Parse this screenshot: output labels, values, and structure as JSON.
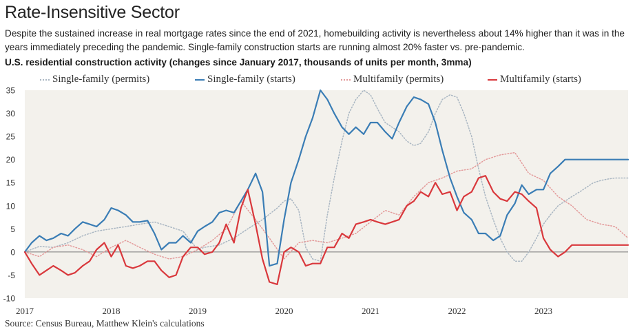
{
  "header": {
    "title": "Rate-Insensitive Sector",
    "subtitle": "Despite the sustained increase in real mortgage rates since the end of 2021, homebuilding activity is nevertheless about 14% higher than it was in the years immediately preceding the pandemic. Single-family construction starts are running almost 20% faster vs. pre-pandemic.",
    "chart_title": "U.S. residential construction activity (changes since January 2017, thousands of units per month, 3mma)"
  },
  "source": "Source: Census Bureau, Matthew Klein's calculations",
  "chart_data": {
    "type": "line",
    "ylim": [
      -10,
      35
    ],
    "yticks": [
      -10,
      -5,
      0,
      5,
      10,
      15,
      20,
      25,
      30,
      35
    ],
    "xlim": [
      2017.0,
      2023.98
    ],
    "xticks": [
      "2017",
      "2018",
      "2019",
      "2020",
      "2021",
      "2022",
      "2023"
    ],
    "grid": false,
    "legend_position": "top",
    "colors": {
      "sf_permits": "#a9b6c2",
      "sf_starts": "#3a7db5",
      "mf_permits": "#e39a9a",
      "mf_starts": "#d9383c",
      "zero_line": "#777777",
      "plot_background": "#f3f1ec"
    },
    "series": [
      {
        "name": "Single-family (permits)",
        "key": "sf_permits",
        "style": "dotted",
        "x": [
          2017.0,
          2017.17,
          2017.33,
          2017.5,
          2017.67,
          2017.83,
          2018.0,
          2018.17,
          2018.33,
          2018.5,
          2018.67,
          2018.83,
          2019.0,
          2019.08,
          2019.25,
          2019.42,
          2019.58,
          2019.75,
          2019.92,
          2020.0,
          2020.08,
          2020.17,
          2020.25,
          2020.33,
          2020.42,
          2020.5,
          2020.58,
          2020.67,
          2020.75,
          2020.83,
          2020.92,
          2021.0,
          2021.08,
          2021.17,
          2021.25,
          2021.33,
          2021.42,
          2021.5,
          2021.58,
          2021.67,
          2021.75,
          2021.83,
          2021.92,
          2022.0,
          2022.08,
          2022.17,
          2022.25,
          2022.33,
          2022.42,
          2022.5,
          2022.58,
          2022.67,
          2022.75,
          2022.83,
          2022.92,
          2023.0,
          2023.08,
          2023.17,
          2023.25,
          2023.33,
          2023.42,
          2023.5,
          2023.58,
          2023.67,
          2023.75,
          2023.83,
          2023.92,
          2023.98
        ],
        "values": [
          0,
          1.2,
          1.0,
          2.0,
          3.5,
          4.5,
          5.0,
          5.5,
          6.0,
          6.5,
          5.5,
          4.5,
          0.5,
          1.0,
          1.5,
          3.0,
          5.0,
          7.0,
          9.5,
          11.0,
          11.5,
          9.0,
          1.0,
          -1.5,
          -2.0,
          8.0,
          16.0,
          24.0,
          30.0,
          33.0,
          35.0,
          34.0,
          31.0,
          28.0,
          27.0,
          26.0,
          24.0,
          23.0,
          23.5,
          26.0,
          30.0,
          33.0,
          34.0,
          33.5,
          30.0,
          25.0,
          18.0,
          12.0,
          7.0,
          3.0,
          0.0,
          -2.0,
          -2.0,
          0.0,
          3.0,
          6.0,
          8.0,
          10.0,
          11.0,
          12.0,
          13.0,
          14.0,
          15.0,
          15.5,
          15.8,
          16.0,
          16.0,
          16.0
        ]
      },
      {
        "name": "Single-family (starts)",
        "key": "sf_starts",
        "style": "solid",
        "x": [
          2017.0,
          2017.08,
          2017.17,
          2017.25,
          2017.33,
          2017.42,
          2017.5,
          2017.58,
          2017.67,
          2017.75,
          2017.83,
          2017.92,
          2018.0,
          2018.08,
          2018.17,
          2018.25,
          2018.33,
          2018.42,
          2018.5,
          2018.58,
          2018.67,
          2018.75,
          2018.83,
          2018.92,
          2019.0,
          2019.08,
          2019.17,
          2019.25,
          2019.33,
          2019.42,
          2019.5,
          2019.58,
          2019.67,
          2019.75,
          2019.83,
          2019.92,
          2020.0,
          2020.08,
          2020.17,
          2020.25,
          2020.33,
          2020.42,
          2020.5,
          2020.58,
          2020.67,
          2020.75,
          2020.83,
          2020.92,
          2021.0,
          2021.08,
          2021.17,
          2021.25,
          2021.33,
          2021.42,
          2021.5,
          2021.58,
          2021.67,
          2021.75,
          2021.83,
          2021.92,
          2022.0,
          2022.08,
          2022.17,
          2022.25,
          2022.33,
          2022.42,
          2022.5,
          2022.58,
          2022.67,
          2022.75,
          2022.83,
          2022.92,
          2023.0,
          2023.08,
          2023.17,
          2023.25,
          2023.33,
          2023.42,
          2023.5,
          2023.58,
          2023.67,
          2023.75,
          2023.83,
          2023.92,
          2023.98
        ],
        "values": [
          0,
          2.0,
          3.5,
          2.5,
          3.0,
          4.0,
          3.5,
          5.0,
          6.5,
          6.0,
          5.5,
          7.0,
          9.5,
          9.0,
          8.0,
          6.5,
          6.5,
          6.8,
          4.0,
          0.5,
          2.0,
          2.0,
          3.5,
          2.0,
          4.5,
          5.5,
          6.5,
          8.5,
          9.0,
          8.5,
          11.0,
          13.5,
          17.0,
          13.0,
          -3.0,
          -2.5,
          7.0,
          15.0,
          20.0,
          25.0,
          29.0,
          35.0,
          33.0,
          30.0,
          27.0,
          25.5,
          27.0,
          25.5,
          28.0,
          28.0,
          26.0,
          24.5,
          28.0,
          31.5,
          33.5,
          33.0,
          32.0,
          28.0,
          22.0,
          16.0,
          12.0,
          8.5,
          7.0,
          4.0,
          4.0,
          2.5,
          3.5,
          8.0,
          10.5,
          14.5,
          12.5,
          13.5,
          13.5,
          17.0,
          18.5,
          20.0,
          20.0,
          20.0,
          20.0,
          20.0,
          20.0,
          20.0,
          20.0,
          20.0,
          20.0
        ]
      },
      {
        "name": "Multifamily (permits)",
        "key": "mf_permits",
        "style": "dotted",
        "x": [
          2017.0,
          2017.17,
          2017.33,
          2017.5,
          2017.67,
          2017.83,
          2018.0,
          2018.17,
          2018.33,
          2018.5,
          2018.67,
          2018.83,
          2019.0,
          2019.17,
          2019.33,
          2019.5,
          2019.67,
          2019.83,
          2020.0,
          2020.17,
          2020.33,
          2020.5,
          2020.67,
          2020.83,
          2021.0,
          2021.17,
          2021.33,
          2021.5,
          2021.67,
          2021.83,
          2022.0,
          2022.17,
          2022.33,
          2022.5,
          2022.67,
          2022.83,
          2023.0,
          2023.17,
          2023.33,
          2023.5,
          2023.67,
          2023.83,
          2023.98
        ],
        "values": [
          0,
          -1.0,
          1.0,
          1.5,
          0.5,
          -1.0,
          1.0,
          2.5,
          1.0,
          -0.5,
          -1.5,
          -1.0,
          0.5,
          2.5,
          5.0,
          11.0,
          7.0,
          3.0,
          -1.5,
          2.0,
          2.5,
          2.0,
          3.0,
          4.0,
          6.5,
          9.0,
          8.0,
          12.0,
          15.0,
          16.0,
          17.5,
          18.0,
          20.0,
          21.0,
          21.5,
          17.0,
          15.5,
          12.0,
          10.0,
          7.0,
          6.0,
          5.5,
          3.0
        ]
      },
      {
        "name": "Multifamily (starts)",
        "key": "mf_starts",
        "style": "solid",
        "x": [
          2017.0,
          2017.08,
          2017.17,
          2017.25,
          2017.33,
          2017.42,
          2017.5,
          2017.58,
          2017.67,
          2017.75,
          2017.83,
          2017.92,
          2018.0,
          2018.08,
          2018.17,
          2018.25,
          2018.33,
          2018.42,
          2018.5,
          2018.58,
          2018.67,
          2018.75,
          2018.83,
          2018.92,
          2019.0,
          2019.08,
          2019.17,
          2019.25,
          2019.33,
          2019.42,
          2019.5,
          2019.58,
          2019.67,
          2019.75,
          2019.83,
          2019.92,
          2020.0,
          2020.08,
          2020.17,
          2020.25,
          2020.33,
          2020.42,
          2020.5,
          2020.58,
          2020.67,
          2020.75,
          2020.83,
          2020.92,
          2021.0,
          2021.08,
          2021.17,
          2021.25,
          2021.33,
          2021.42,
          2021.5,
          2021.58,
          2021.67,
          2021.75,
          2021.83,
          2021.92,
          2022.0,
          2022.08,
          2022.17,
          2022.25,
          2022.33,
          2022.42,
          2022.5,
          2022.58,
          2022.67,
          2022.75,
          2022.83,
          2022.92,
          2023.0,
          2023.08,
          2023.17,
          2023.25,
          2023.33,
          2023.42,
          2023.5,
          2023.58,
          2023.67,
          2023.75,
          2023.83,
          2023.92,
          2023.98
        ],
        "values": [
          0,
          -2.5,
          -5.0,
          -4.0,
          -3.0,
          -4.0,
          -5.0,
          -4.5,
          -3.0,
          -2.0,
          0.5,
          2.0,
          -1.0,
          1.5,
          -3.0,
          -3.5,
          -3.0,
          -2.0,
          -2.0,
          -4.0,
          -5.5,
          -5.0,
          -1.0,
          1.0,
          1.0,
          -0.5,
          0.0,
          2.0,
          6.0,
          2.0,
          9.5,
          13.5,
          6.0,
          -1.5,
          -6.5,
          -7.0,
          0.0,
          1.0,
          0.0,
          -3.0,
          -2.5,
          -2.5,
          1.0,
          1.0,
          4.0,
          3.0,
          6.0,
          6.5,
          7.0,
          6.5,
          6.0,
          6.5,
          7.0,
          10.0,
          11.0,
          13.0,
          12.0,
          15.0,
          12.5,
          13.0,
          9.0,
          12.0,
          13.0,
          16.0,
          16.5,
          13.0,
          11.5,
          11.0,
          13.0,
          12.5,
          11.0,
          9.5,
          3.0,
          0.5,
          -1.0,
          0.0,
          1.5,
          1.5,
          1.5,
          1.5,
          1.5,
          1.5,
          1.5,
          1.5,
          1.5
        ]
      }
    ]
  }
}
